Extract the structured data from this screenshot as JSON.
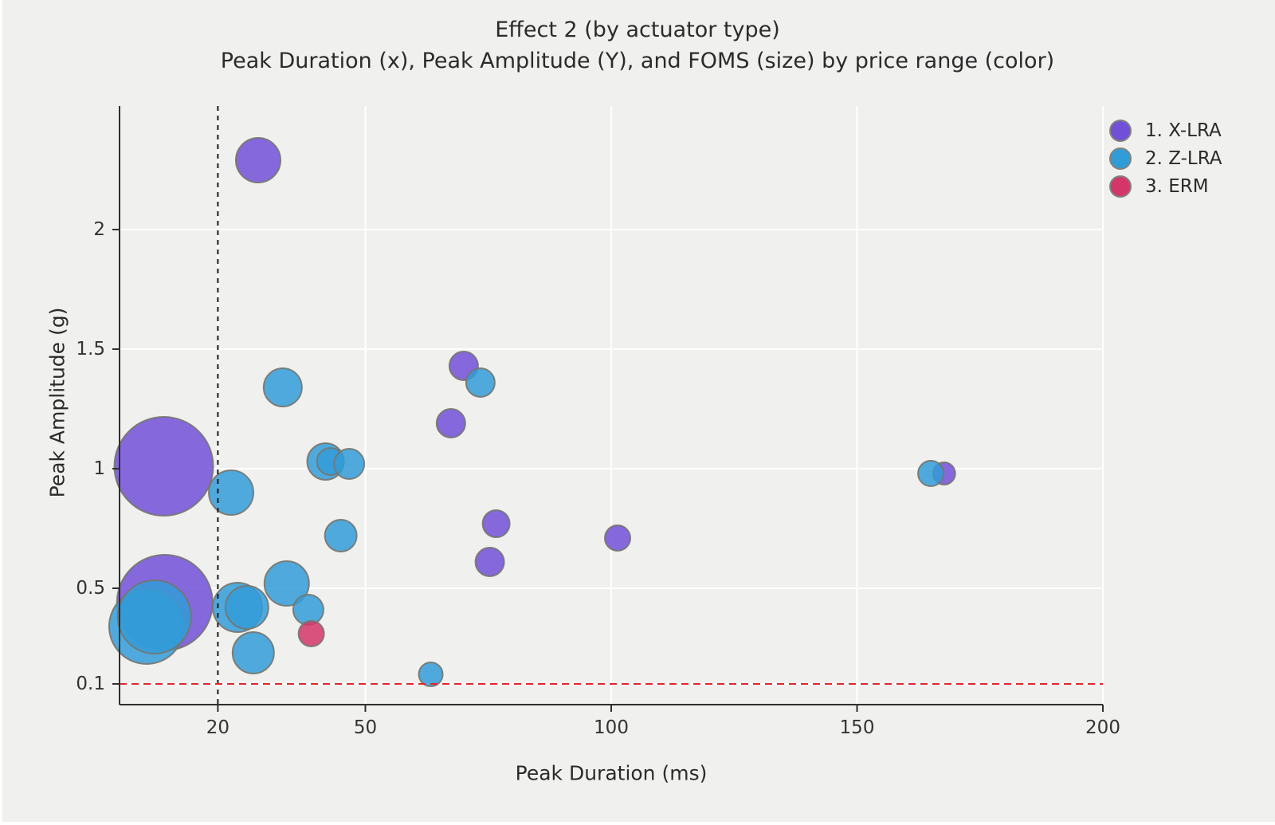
{
  "page": {
    "background_color": "#f0f0ef"
  },
  "chart_data": {
    "type": "scatter",
    "subtype": "bubble",
    "title": "Effect 2 (by actuator type)",
    "subtitle": "Peak Duration (x), Peak Amplitude (Y), and FOMS (size) by price range (color)",
    "xlabel": "Peak Duration (ms)",
    "ylabel": "Peak Amplitude (g)",
    "x_ticks": [
      20,
      50,
      100,
      150,
      200
    ],
    "y_ticks": [
      0.1,
      0.5,
      1,
      1.5,
      2
    ],
    "x_range": [
      0,
      200
    ],
    "y_range": [
      0.01,
      2.52
    ],
    "grid": "white major gridlines on gray panel",
    "legend_position": "top-right",
    "colors": {
      "background": "#f0f0ef",
      "gridline": "#ffffff",
      "axis": "#2f2f2f",
      "bubble_stroke": "#75756f",
      "vline": "#1a1a1a",
      "hline": "#e3242b"
    },
    "annotations": {
      "vline_x": 20,
      "vline_style": "black dashed vertical line",
      "hline_y": 0.1,
      "hline_style": "red dashed horizontal line"
    },
    "size_note": "r = bubble radius in px (FOMS size)",
    "series": [
      {
        "name": "1. X-LRA",
        "color": "#7150D8",
        "points": [
          {
            "x": 28.2,
            "y": 2.29,
            "r": 28
          },
          {
            "x": 9.0,
            "y": 1.01,
            "r": 62
          },
          {
            "x": 9.2,
            "y": 0.44,
            "r": 60
          },
          {
            "x": 70.0,
            "y": 1.43,
            "r": 18
          },
          {
            "x": 67.4,
            "y": 1.19,
            "r": 18
          },
          {
            "x": 76.6,
            "y": 0.77,
            "r": 17
          },
          {
            "x": 75.3,
            "y": 0.61,
            "r": 18
          },
          {
            "x": 101.3,
            "y": 0.71,
            "r": 16
          },
          {
            "x": 167.7,
            "y": 0.98,
            "r": 14
          }
        ]
      },
      {
        "name": "2. Z-LRA",
        "color": "#329CD8",
        "points": [
          {
            "x": 33.2,
            "y": 1.34,
            "r": 24
          },
          {
            "x": 22.7,
            "y": 0.9,
            "r": 28
          },
          {
            "x": 5.5,
            "y": 0.34,
            "r": 47
          },
          {
            "x": 7.1,
            "y": 0.38,
            "r": 46
          },
          {
            "x": 24.0,
            "y": 0.42,
            "r": 31
          },
          {
            "x": 25.9,
            "y": 0.42,
            "r": 27
          },
          {
            "x": 34.0,
            "y": 0.52,
            "r": 28
          },
          {
            "x": 38.4,
            "y": 0.41,
            "r": 19
          },
          {
            "x": 27.2,
            "y": 0.23,
            "r": 26
          },
          {
            "x": 41.9,
            "y": 1.03,
            "r": 23
          },
          {
            "x": 42.9,
            "y": 1.03,
            "r": 17
          },
          {
            "x": 46.7,
            "y": 1.02,
            "r": 19
          },
          {
            "x": 45.0,
            "y": 0.72,
            "r": 20
          },
          {
            "x": 73.4,
            "y": 1.36,
            "r": 18
          },
          {
            "x": 63.3,
            "y": 0.14,
            "r": 15
          },
          {
            "x": 165.0,
            "y": 0.98,
            "r": 16
          }
        ]
      },
      {
        "name": "3. ERM",
        "color": "#D5366A",
        "points": [
          {
            "x": 39.0,
            "y": 0.31,
            "r": 16
          }
        ]
      }
    ]
  },
  "legend": {
    "items": [
      {
        "label": "1. X-LRA",
        "color": "#7150D8"
      },
      {
        "label": "2. Z-LRA",
        "color": "#329CD8"
      },
      {
        "label": "3. ERM",
        "color": "#D5366A"
      }
    ]
  }
}
